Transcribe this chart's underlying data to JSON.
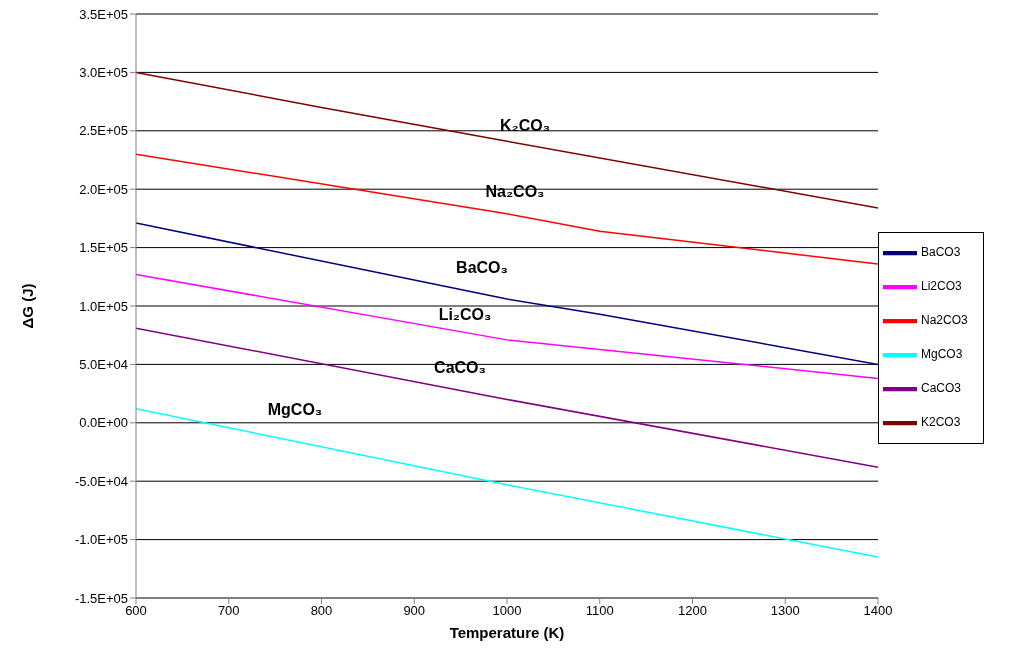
{
  "chart_data": {
    "type": "line",
    "xlabel": "Temperature (K)",
    "ylabel": "ΔG (J)",
    "series": [
      {
        "name": "BaCO3",
        "color": "#000080",
        "x": [
          600,
          1000,
          1100,
          1400
        ],
        "values": [
          171000,
          106000,
          93000,
          50000
        ]
      },
      {
        "name": "Li2CO3",
        "color": "#ff00ff",
        "x": [
          600,
          1000,
          1400
        ],
        "values": [
          127000,
          71000,
          38000
        ]
      },
      {
        "name": "Na2CO3",
        "color": "#ff0000",
        "x": [
          600,
          1000,
          1100,
          1400
        ],
        "values": [
          230000,
          179000,
          164000,
          136000
        ]
      },
      {
        "name": "MgCO3",
        "color": "#00ffff",
        "x": [
          600,
          1000,
          1400
        ],
        "values": [
          12000,
          -53000,
          -115000
        ]
      },
      {
        "name": "CaCO3",
        "color": "#800080",
        "x": [
          600,
          1000,
          1400
        ],
        "values": [
          81000,
          20000,
          -38000
        ]
      },
      {
        "name": "K2CO3",
        "color": "#800000",
        "x": [
          600,
          800,
          1000,
          1400
        ],
        "values": [
          300000,
          270000,
          241000,
          184000
        ]
      }
    ],
    "xlim": [
      600,
      1400
    ],
    "xticks": [
      600,
      700,
      800,
      900,
      1000,
      1100,
      1200,
      1300,
      1400
    ],
    "ylim": [
      -150000,
      350000
    ],
    "yticks": [
      {
        "value": -150000,
        "label": "-1.5E+05"
      },
      {
        "value": -100000,
        "label": "-1.0E+05"
      },
      {
        "value": -50000,
        "label": "-5.0E+04"
      },
      {
        "value": 0,
        "label": "0.0E+00"
      },
      {
        "value": 50000,
        "label": "5.0E+04"
      },
      {
        "value": 100000,
        "label": "1.0E+05"
      },
      {
        "value": 150000,
        "label": "1.5E+05"
      },
      {
        "value": 200000,
        "label": "2.0E+05"
      },
      {
        "value": 250000,
        "label": "2.5E+05"
      },
      {
        "value": 300000,
        "label": "3.0E+05"
      },
      {
        "value": 350000,
        "label": "3.5E+05"
      }
    ],
    "grid": "y",
    "legend": "right",
    "marker": "none",
    "line_style": "solid",
    "annotations": [
      "K₂CO₃",
      "Na₂CO₃",
      "BaCO₃",
      "Li₂CO₃",
      "CaCO₃",
      "MgCO₃"
    ]
  }
}
